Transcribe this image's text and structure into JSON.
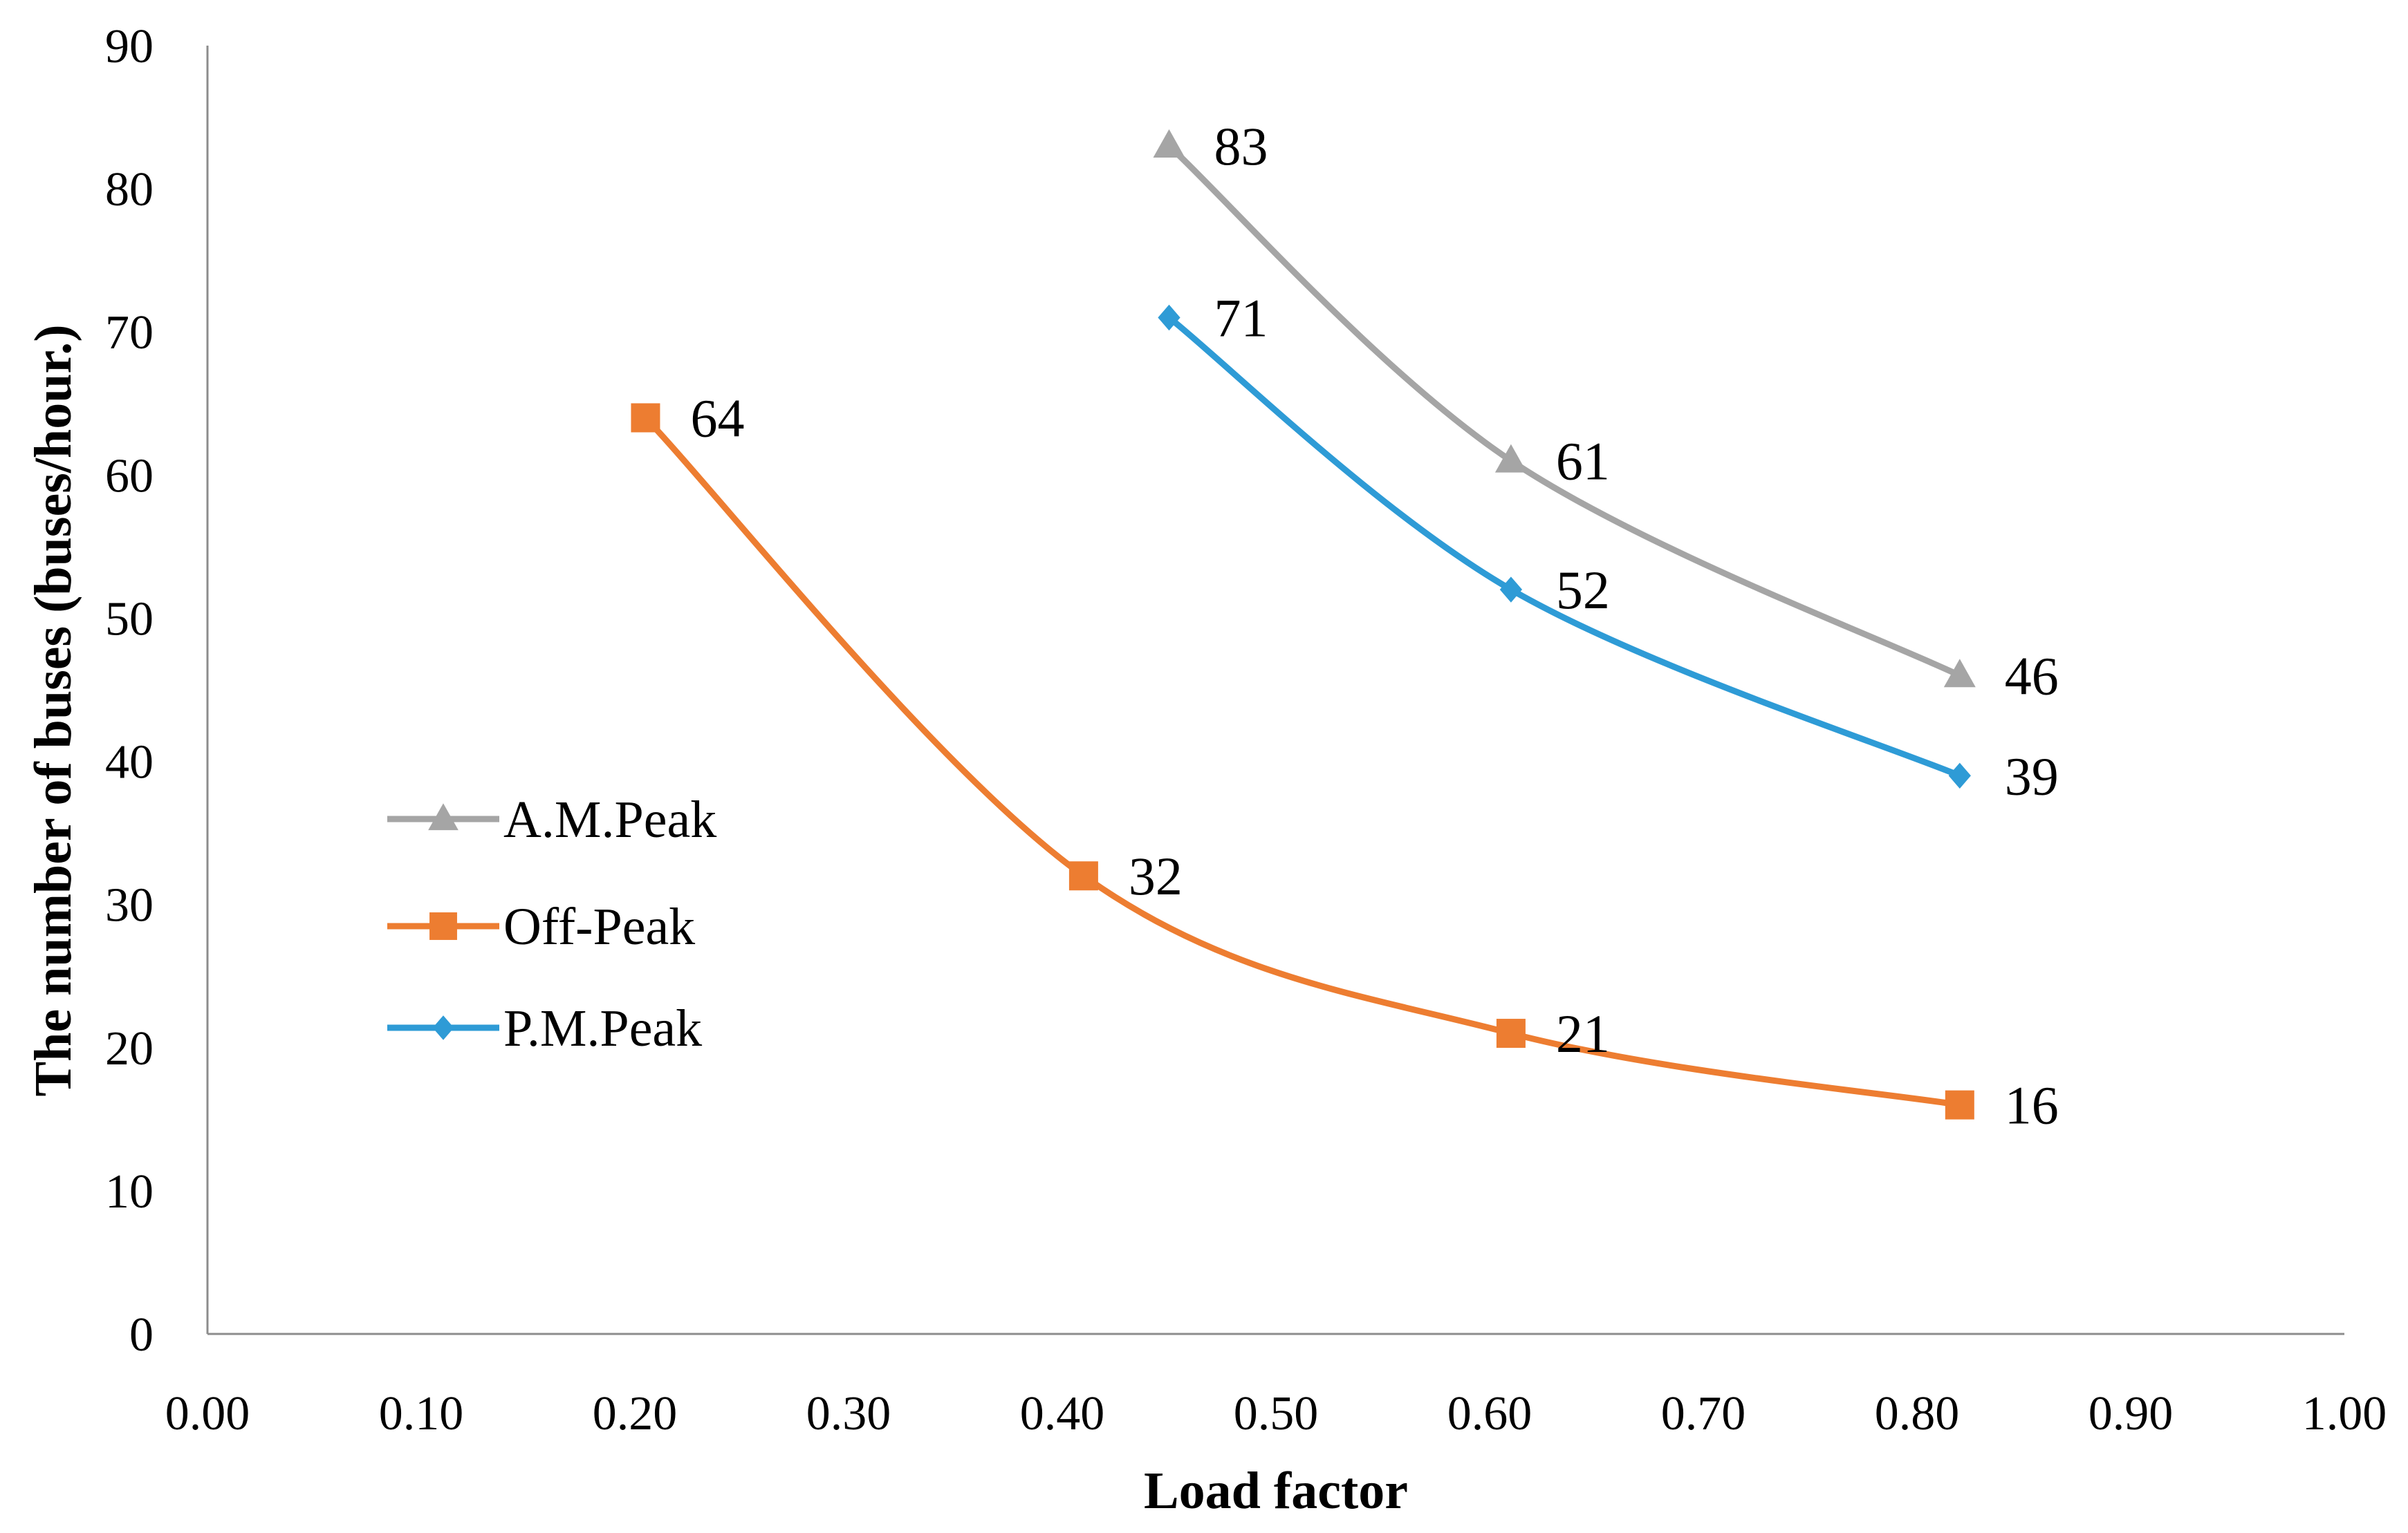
{
  "chart_data": {
    "type": "line",
    "title": "",
    "xlabel": "Load factor",
    "ylabel": "The number of buses (buses/hour.)",
    "xlim": [
      0.0,
      1.0
    ],
    "ylim": [
      0,
      90
    ],
    "x_ticks": [
      "0.00",
      "0.10",
      "0.20",
      "0.30",
      "0.40",
      "0.50",
      "0.60",
      "0.70",
      "0.80",
      "0.90",
      "1.00"
    ],
    "y_ticks": [
      "0",
      "10",
      "20",
      "30",
      "40",
      "50",
      "60",
      "70",
      "80",
      "90"
    ],
    "grid": false,
    "smooth": true,
    "legend_position": "left-middle",
    "series": [
      {
        "name": "A.M.Peak",
        "color": "#a5a5a5",
        "marker": "triangle",
        "x": [
          0.45,
          0.61,
          0.82
        ],
        "values": [
          83,
          61,
          46
        ],
        "labels": [
          "83",
          "61",
          "46"
        ]
      },
      {
        "name": "Off-Peak",
        "color": "#ed7d31",
        "marker": "square",
        "x": [
          0.205,
          0.41,
          0.61,
          0.82
        ],
        "values": [
          64,
          32,
          21,
          16
        ],
        "labels": [
          "64",
          "32",
          "21",
          "16"
        ]
      },
      {
        "name": "P.M.Peak",
        "color": "#2e9bd6",
        "marker": "diamond",
        "x": [
          0.45,
          0.61,
          0.82
        ],
        "values": [
          71,
          52,
          39
        ],
        "labels": [
          "71",
          "52",
          "39"
        ]
      }
    ]
  }
}
